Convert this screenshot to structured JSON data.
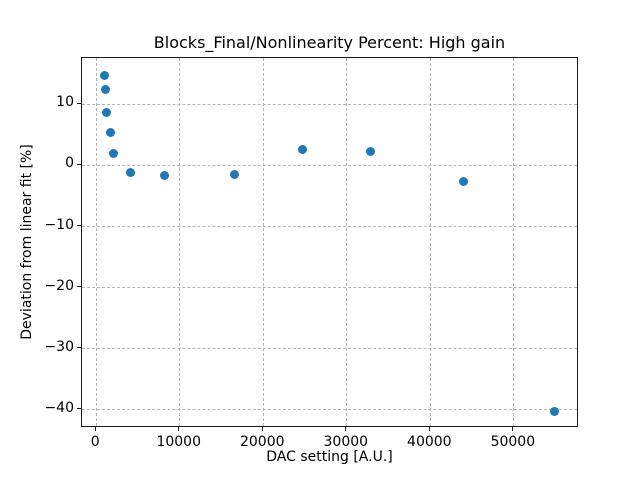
{
  "chart_data": {
    "type": "scatter",
    "title": "Blocks_Final/Nonlinearity Percent: High gain",
    "xlabel": "DAC setting [A.U.]",
    "ylabel": "Deviation from linear fit [%]",
    "xlim": [
      -1700,
      57800
    ],
    "ylim": [
      -43,
      17.6
    ],
    "x_ticks": [
      0,
      10000,
      20000,
      30000,
      40000,
      50000
    ],
    "x_tick_labels": [
      "0",
      "10000",
      "20000",
      "30000",
      "40000",
      "50000"
    ],
    "y_ticks": [
      10,
      0,
      -10,
      -20,
      -30,
      -40
    ],
    "y_tick_labels": [
      "10",
      "0",
      "−10",
      "−20",
      "−30",
      "−40"
    ],
    "grid": true,
    "grid_style": "dashed",
    "legend": "none",
    "marker_color": "#1f77b4",
    "points": [
      {
        "x": 1000,
        "y": 14.8
      },
      {
        "x": 1080,
        "y": 12.5
      },
      {
        "x": 1280,
        "y": 8.6
      },
      {
        "x": 1710,
        "y": 5.4
      },
      {
        "x": 2120,
        "y": 2.0
      },
      {
        "x": 4100,
        "y": -1.1
      },
      {
        "x": 8170,
        "y": -1.6
      },
      {
        "x": 16540,
        "y": -1.4
      },
      {
        "x": 24720,
        "y": 2.6
      },
      {
        "x": 32890,
        "y": 2.3
      },
      {
        "x": 43980,
        "y": -2.6
      },
      {
        "x": 54810,
        "y": -40.3
      }
    ]
  }
}
